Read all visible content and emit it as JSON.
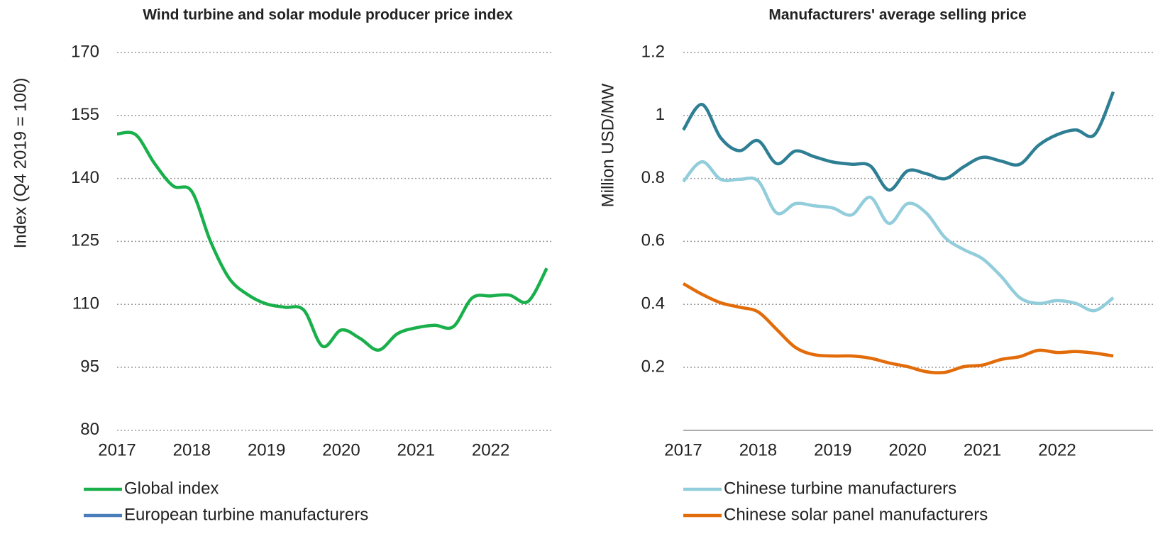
{
  "chart_data": [
    {
      "type": "line",
      "title": "Wind turbine and solar module producer price index",
      "y_label": "Index (Q4 2019 = 100)",
      "x": [
        2017,
        2017.25,
        2017.5,
        2017.75,
        2018,
        2018.25,
        2018.5,
        2018.75,
        2019,
        2019.25,
        2019.5,
        2019.75,
        2020,
        2020.25,
        2020.5,
        2020.75,
        2021,
        2021.25,
        2021.5,
        2021.75,
        2022,
        2022.25,
        2022.5,
        2022.75
      ],
      "series": [
        {
          "name": "Global index",
          "color": "#19b04b",
          "values": [
            150.6,
            150.4,
            143.6,
            138.2,
            136.9,
            125,
            116.2,
            112.3,
            110.1,
            109.3,
            108.6,
            100,
            103.9,
            101.9,
            99.1,
            103,
            104.4,
            105,
            104.7,
            111.5,
            112,
            112.2,
            110.7,
            118.6
          ]
        }
      ],
      "xlim": [
        2017,
        2022.82
      ],
      "xticks": [
        2017,
        2018,
        2019,
        2020,
        2021,
        2022
      ],
      "ylim": [
        80,
        170
      ],
      "yticks": [
        80,
        95,
        110,
        125,
        140,
        155,
        170
      ],
      "grid": true
    },
    {
      "type": "line",
      "title": "Manufacturers' average selling price",
      "y_label": "Million USD/MW",
      "x": [
        2017,
        2017.25,
        2017.5,
        2017.75,
        2018,
        2018.25,
        2018.5,
        2018.75,
        2019,
        2019.25,
        2019.5,
        2019.75,
        2020,
        2020.25,
        2020.5,
        2020.75,
        2021,
        2021.25,
        2021.5,
        2021.75,
        2022,
        2022.25,
        2022.5,
        2022.75
      ],
      "series": [
        {
          "name": "European turbine manufacturers",
          "color": "#2e7e94",
          "legend_color": "#4a7ebb",
          "values": [
            0.954,
            1.035,
            0.929,
            0.888,
            0.92,
            0.847,
            0.887,
            0.869,
            0.852,
            0.845,
            0.84,
            0.763,
            0.824,
            0.815,
            0.799,
            0.837,
            0.867,
            0.855,
            0.845,
            0.905,
            0.939,
            0.954,
            0.939,
            1.075
          ]
        },
        {
          "name": "Chinese turbine manufacturers",
          "color": "#92cddc",
          "values": [
            0.79,
            0.853,
            0.797,
            0.797,
            0.792,
            0.69,
            0.72,
            0.713,
            0.706,
            0.684,
            0.74,
            0.657,
            0.72,
            0.69,
            0.612,
            0.574,
            0.545,
            0.489,
            0.421,
            0.403,
            0.412,
            0.403,
            0.38,
            0.421
          ]
        },
        {
          "name": "Chinese solar panel manufacturers",
          "color": "#e36c0a",
          "values": [
            0.466,
            0.432,
            0.405,
            0.391,
            0.376,
            0.32,
            0.263,
            0.24,
            0.236,
            0.236,
            0.229,
            0.214,
            0.202,
            0.186,
            0.184,
            0.202,
            0.207,
            0.225,
            0.234,
            0.254,
            0.247,
            0.25,
            0.245,
            0.236
          ]
        }
      ],
      "xlim": [
        2017,
        2023.3
      ],
      "xticks": [
        2017,
        2018,
        2019,
        2020,
        2021,
        2022
      ],
      "ylim": [
        0,
        1.2
      ],
      "yticks": [
        0.2,
        0.4,
        0.6,
        0.8,
        1.0,
        1.2
      ],
      "grid": true
    }
  ]
}
